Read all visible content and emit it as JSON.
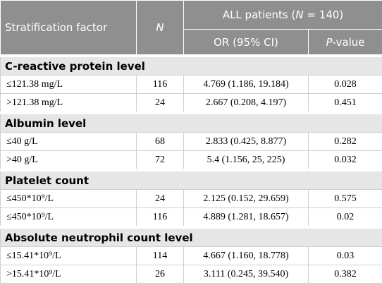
{
  "header": {
    "stratification_factor": "Stratification factor",
    "n": "N",
    "all_patients": [
      "ALL patients (",
      "N",
      " = 140)"
    ],
    "or_ci": "OR (95% CI)",
    "p_value": [
      "P",
      "-value"
    ]
  },
  "groups": [
    {
      "title": "C-reactive protein level",
      "rows": [
        [
          "≤121.38 mg/L",
          "116",
          "4.769 (1.186, 19.184)",
          "0.028"
        ],
        [
          ">121.38 mg/L",
          "24",
          "2.667 (0.208, 4.197)",
          "0.451"
        ]
      ]
    },
    {
      "title": "Albumin level",
      "rows": [
        [
          "≤40 g/L",
          "68",
          "2.833 (0.425, 8.877)",
          "0.282"
        ],
        [
          ">40 g/L",
          "72",
          "5.4 (1.156, 25, 225)",
          "0.032"
        ]
      ]
    },
    {
      "title": "Platelet count",
      "rows": [
        [
          "≤450*10⁹/L",
          "24",
          "2.125 (0.152, 29.659)",
          "0.575"
        ],
        [
          "≤450*10⁹/L",
          "116",
          "4.889 (1.281, 18.657)",
          "0.02"
        ]
      ]
    },
    {
      "title": "Absolute neutrophil count level",
      "rows": [
        [
          "≤15.41*10⁹/L",
          "114",
          "4.667 (1.160, 18.778)",
          "0.03"
        ],
        [
          ">15.41*10⁹/L",
          "26",
          "3.111 (0.245, 39.540)",
          "0.382"
        ]
      ]
    }
  ]
}
